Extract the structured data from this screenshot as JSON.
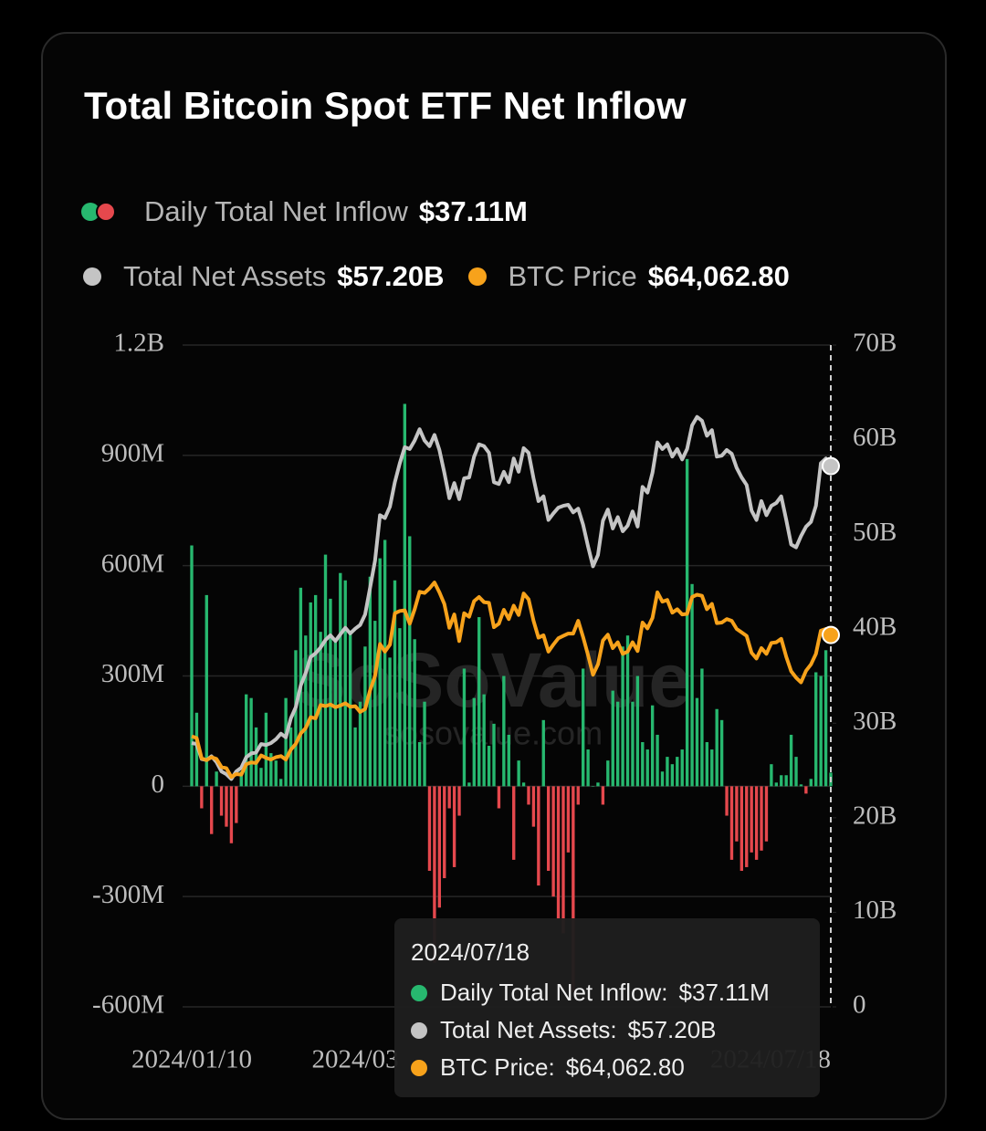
{
  "chart_data": {
    "type": "bar-line",
    "title": "Total Bitcoin Spot ETF Net Inflow",
    "watermark": [
      "SoSoValue",
      "sosovalue.com"
    ],
    "categories": [
      "2024/01/10",
      null,
      null,
      null,
      null,
      null,
      null,
      null,
      null,
      null,
      null,
      null,
      null,
      null,
      null,
      null,
      null,
      null,
      null,
      null,
      null,
      null,
      null,
      null,
      null,
      null,
      null,
      null,
      null,
      null,
      null,
      null,
      null,
      "2024/03",
      null,
      null,
      null,
      null,
      null,
      null,
      null,
      null,
      null,
      null,
      null,
      null,
      null,
      null,
      null,
      null,
      null,
      null,
      null,
      null,
      null,
      null,
      null,
      null,
      null,
      null,
      null,
      null,
      null,
      null,
      null,
      null,
      null,
      null,
      null,
      null,
      null,
      null,
      null,
      null,
      null,
      null,
      null,
      null,
      null,
      null,
      null,
      null,
      null,
      null,
      null,
      null,
      null,
      null,
      null,
      null,
      null,
      null,
      null,
      null,
      null,
      null,
      null,
      null,
      null,
      null,
      null,
      null,
      null,
      null,
      null,
      null,
      null,
      null,
      null,
      null,
      null,
      null,
      null,
      null,
      null,
      null,
      null,
      null,
      null,
      null,
      null,
      null,
      null,
      null,
      null,
      null,
      null,
      null,
      null,
      "2024/07/18"
    ],
    "series": [
      {
        "name": "Daily Total Net Inflow",
        "type": "bar",
        "axis": "y",
        "positive_color": "#27b86f",
        "negative_color": "#e5484d",
        "values": [
          655,
          200,
          -60,
          520,
          -130,
          40,
          -80,
          -110,
          -155,
          -100,
          40,
          250,
          240,
          160,
          50,
          200,
          90,
          70,
          20,
          240,
          160,
          370,
          540,
          410,
          500,
          520,
          420,
          630,
          510,
          400,
          580,
          560,
          420,
          160,
          230,
          380,
          570,
          450,
          620,
          670,
          350,
          560,
          430,
          1040,
          680,
          400,
          120,
          230,
          -230,
          -480,
          -330,
          -250,
          -60,
          -220,
          -80,
          320,
          10,
          240,
          460,
          250,
          110,
          170,
          -60,
          300,
          140,
          -200,
          70,
          10,
          -50,
          -110,
          -270,
          180,
          -230,
          -300,
          -360,
          -400,
          -180,
          -560,
          -50,
          320,
          100,
          0,
          10,
          -50,
          70,
          260,
          230,
          380,
          410,
          230,
          300,
          120,
          100,
          220,
          140,
          40,
          80,
          60,
          80,
          100,
          890,
          550,
          240,
          320,
          120,
          100,
          210,
          180,
          -80,
          -200,
          -150,
          -230,
          -220,
          -180,
          -200,
          -175,
          -150,
          60,
          10,
          30,
          30,
          140,
          80,
          5,
          -20,
          20,
          310,
          300,
          370,
          37.11
        ]
      },
      {
        "name": "Total Net Assets",
        "type": "line",
        "axis": "y2",
        "color": "#c4c4c4",
        "values": [
          27.9,
          27.8,
          26.2,
          26.1,
          26.5,
          25.9,
          24.9,
          24.6,
          24.1,
          24.9,
          25.3,
          26.4,
          26.8,
          26.9,
          27.8,
          27.7,
          27.9,
          28.3,
          28.9,
          28.5,
          30.5,
          31.7,
          34.0,
          35.3,
          37.0,
          37.4,
          38.0,
          38.8,
          39.3,
          38.7,
          39.4,
          40.1,
          39.5,
          40.0,
          40.4,
          41.5,
          44.3,
          47.2,
          52.0,
          51.7,
          52.9,
          55.5,
          57.5,
          59.2,
          59.0,
          59.9,
          61.1,
          59.9,
          59.3,
          60.5,
          58.9,
          56.5,
          53.8,
          55.4,
          53.7,
          55.9,
          56.0,
          58.2,
          59.5,
          59.3,
          58.6,
          55.5,
          55.3,
          56.6,
          55.5,
          58.0,
          56.6,
          59.1,
          58.6,
          55.9,
          53.5,
          54.0,
          51.5,
          52.2,
          52.8,
          53.0,
          53.1,
          52.3,
          52.7,
          51.0,
          48.7,
          46.6,
          47.8,
          51.4,
          52.6,
          50.6,
          51.8,
          50.3,
          50.9,
          52.4,
          50.8,
          55.0,
          54.4,
          56.5,
          59.7,
          59.0,
          59.5,
          58.2,
          59.0,
          57.9,
          59.0,
          61.5,
          62.4,
          62.0,
          60.4,
          61.0,
          58.2,
          58.3,
          58.9,
          58.5,
          57.0,
          56.0,
          55.2,
          52.5,
          51.5,
          53.5,
          52.0,
          53.0,
          53.3,
          54.0,
          51.5,
          48.9,
          48.6,
          49.8,
          50.8,
          51.3,
          53.0,
          57.5,
          58.0,
          57.2
        ]
      },
      {
        "name": "BTC Price",
        "type": "line",
        "axis": "y3",
        "color": "#f7a21b",
        "values": [
          46600,
          46300,
          42800,
          42500,
          43000,
          42700,
          41300,
          41100,
          39600,
          40100,
          40000,
          41800,
          42100,
          42000,
          43300,
          42900,
          42600,
          43000,
          43200,
          42600,
          44300,
          45300,
          47100,
          48000,
          49900,
          49700,
          52000,
          51800,
          52100,
          51600,
          51900,
          52300,
          51700,
          51800,
          50800,
          51300,
          54500,
          57000,
          62500,
          61200,
          62400,
          67800,
          68200,
          68300,
          66000,
          68500,
          71500,
          71300,
          72100,
          73100,
          71400,
          69400,
          65300,
          67600,
          63000,
          67800,
          67200,
          69900,
          70600,
          69700,
          69600,
          65400,
          66000,
          68400,
          66800,
          69100,
          67500,
          71200,
          70200,
          66500,
          63600,
          64000,
          61200,
          62400,
          63500,
          63900,
          64300,
          64300,
          66500,
          63700,
          60600,
          57200,
          59000,
          63100,
          64100,
          61800,
          62800,
          60800,
          61200,
          62800,
          61300,
          66200,
          65200,
          67000,
          71400,
          69800,
          70100,
          67900,
          68500,
          67600,
          67700,
          70600,
          71000,
          70800,
          68500,
          69400,
          66100,
          66200,
          66800,
          66500,
          65100,
          64500,
          63900,
          61000,
          60000,
          61800,
          60800,
          62700,
          62800,
          63400,
          60300,
          57800,
          56700,
          55900,
          57900,
          59000,
          60800,
          64800,
          65100,
          64062.8
        ]
      }
    ],
    "highlight_labels": [
      "$37.11M",
      "$57.20B",
      "$64,062.80"
    ],
    "ylim": [
      -600,
      1200
    ],
    "yticks": [
      {
        "value": 1200,
        "label": "1.2B"
      },
      {
        "value": 900,
        "label": "900M"
      },
      {
        "value": 600,
        "label": "600M"
      },
      {
        "value": 300,
        "label": "300M"
      },
      0,
      {
        "value": -300,
        "label": "-300M"
      },
      {
        "value": -600,
        "label": "-600M"
      }
    ],
    "y2lim": [
      0,
      70
    ],
    "y2ticks": [
      {
        "value": 70,
        "label": "70B"
      },
      {
        "value": 60,
        "label": "60B"
      },
      {
        "value": 50,
        "label": "50B"
      },
      {
        "value": 40,
        "label": "40B"
      },
      {
        "value": 30,
        "label": "30B"
      },
      {
        "value": 20,
        "label": "20B"
      },
      {
        "value": 10,
        "label": "10B"
      },
      0
    ],
    "y3lim": [
      0,
      114000
    ],
    "grid": true
  }
}
